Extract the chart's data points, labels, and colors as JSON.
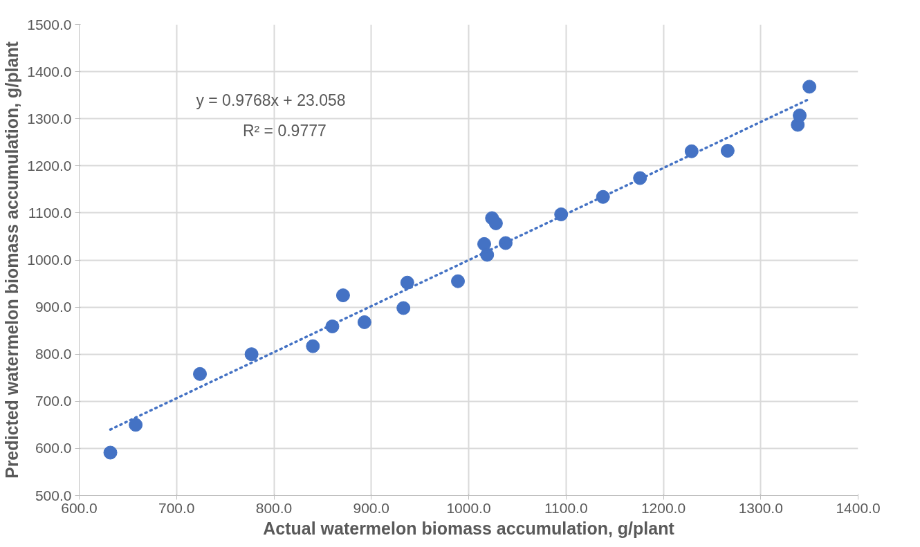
{
  "chart_data": {
    "type": "scatter",
    "xlabel": "Actual watermelon biomass accumulation, g/plant",
    "ylabel": "Predicted watermelon biomass accumulation, g/plant",
    "annotations": [
      "y = 0.9768x + 23.058",
      "R² = 0.9777"
    ],
    "xlim": [
      600,
      1400
    ],
    "ylim": [
      500,
      1500
    ],
    "xticks": [
      {
        "value": 600,
        "label": "600.0"
      },
      {
        "value": 700,
        "label": "700.0"
      },
      {
        "value": 800,
        "label": "800.0"
      },
      {
        "value": 900,
        "label": "900.0"
      },
      {
        "value": 1000,
        "label": "1000.0"
      },
      {
        "value": 1100,
        "label": "1100.0"
      },
      {
        "value": 1200,
        "label": "1200.0"
      },
      {
        "value": 1300,
        "label": "1300.0"
      },
      {
        "value": 1400,
        "label": "1400.0"
      }
    ],
    "yticks": [
      {
        "value": 500,
        "label": "500.0"
      },
      {
        "value": 600,
        "label": "600.0"
      },
      {
        "value": 700,
        "label": "700.0"
      },
      {
        "value": 800,
        "label": "800.0"
      },
      {
        "value": 900,
        "label": "900.0"
      },
      {
        "value": 1000,
        "label": "1000.0"
      },
      {
        "value": 1100,
        "label": "1100.0"
      },
      {
        "value": 1200,
        "label": "1200.0"
      },
      {
        "value": 1300,
        "label": "1300.0"
      },
      {
        "value": 1400,
        "label": "1400.0"
      },
      {
        "value": 1500,
        "label": "1500.0"
      }
    ],
    "grid": true,
    "series": [
      {
        "color": "#4472c4",
        "marker": "circle",
        "x": [
          632,
          658,
          724,
          777,
          840,
          860,
          893,
          871,
          933,
          937,
          989,
          1024,
          1028,
          1016,
          1019,
          1038,
          1095,
          1138,
          1176,
          1229,
          1266,
          1338,
          1340,
          1350
        ],
        "values": [
          591,
          650,
          758,
          800,
          817,
          859,
          868,
          925,
          898,
          952,
          955,
          1089,
          1078,
          1034,
          1011,
          1036,
          1097,
          1134,
          1174,
          1231,
          1232,
          1287,
          1307,
          1368
        ]
      },
      {
        "type": "line",
        "color": "#4472c4",
        "line_style": "dotted",
        "x": [
          632,
          1350
        ],
        "values": [
          640,
          1342
        ]
      }
    ]
  }
}
